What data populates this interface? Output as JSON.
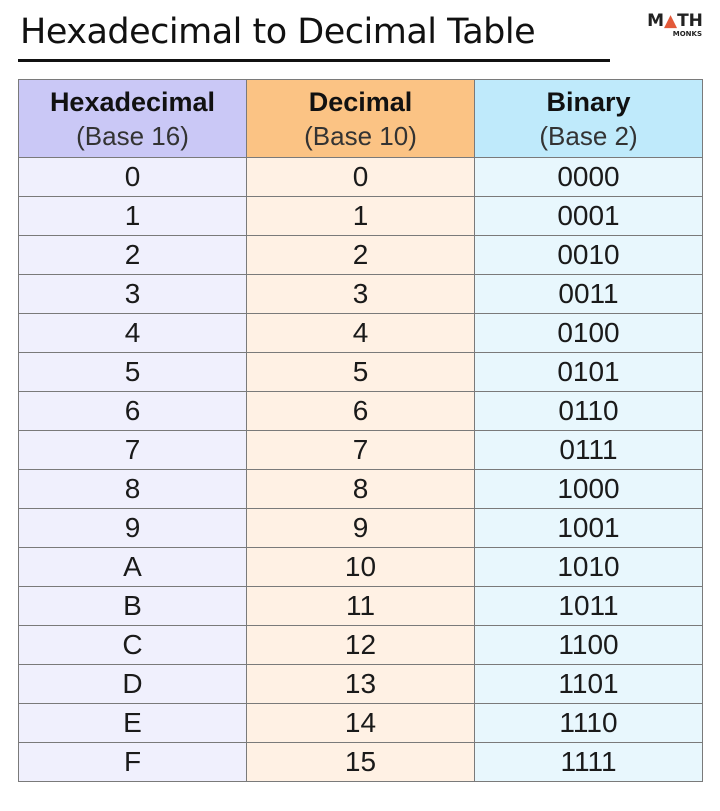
{
  "title": "Hexadecimal to Decimal Table",
  "logo": {
    "top": "MATH",
    "bottom": "MONKS"
  },
  "colors": {
    "hex_header": "#cac8f6",
    "dec_header": "#fbc384",
    "bin_header": "#bfeafb"
  },
  "table": {
    "headers": [
      {
        "title": "Hexadecimal",
        "sub": "(Base 16)"
      },
      {
        "title": "Decimal",
        "sub": "(Base 10)"
      },
      {
        "title": "Binary",
        "sub": "(Base 2)"
      }
    ],
    "rows": [
      [
        "0",
        "0",
        "0000"
      ],
      [
        "1",
        "1",
        "0001"
      ],
      [
        "2",
        "2",
        "0010"
      ],
      [
        "3",
        "3",
        "0011"
      ],
      [
        "4",
        "4",
        "0100"
      ],
      [
        "5",
        "5",
        "0101"
      ],
      [
        "6",
        "6",
        "0110"
      ],
      [
        "7",
        "7",
        "0111"
      ],
      [
        "8",
        "8",
        "1000"
      ],
      [
        "9",
        "9",
        "1001"
      ],
      [
        "A",
        "10",
        "1010"
      ],
      [
        "B",
        "11",
        "1011"
      ],
      [
        "C",
        "12",
        "1100"
      ],
      [
        "D",
        "13",
        "1101"
      ],
      [
        "E",
        "14",
        "1110"
      ],
      [
        "F",
        "15",
        "1111"
      ]
    ]
  }
}
